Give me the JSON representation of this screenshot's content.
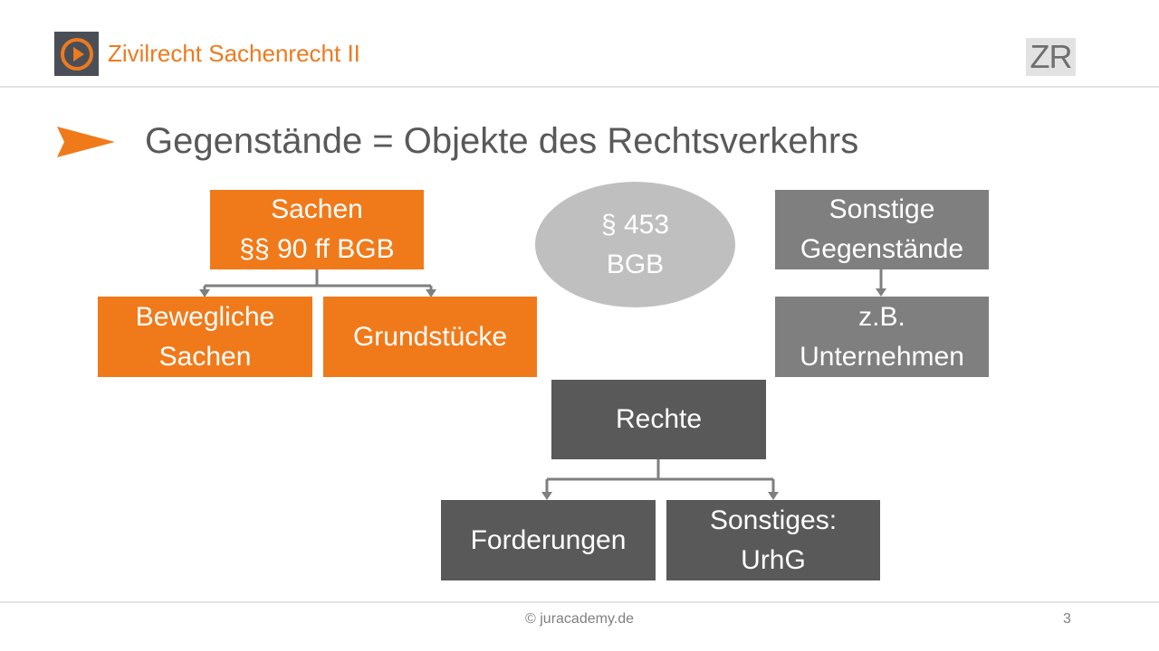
{
  "header": {
    "course_title": "Zivilrecht Sachenrecht II",
    "badge": "ZR",
    "logo_icon": "play-icon"
  },
  "slide": {
    "headline": "Gegenstände = Objekte des Rechtsverkehrs"
  },
  "diagram": {
    "sachen": "Sachen\n§§ 90 ff BGB",
    "bewegliche_sachen": "Bewegliche\nSachen",
    "grundstuecke": "Grundstücke",
    "paragraph_453": "§ 453\nBGB",
    "sonstige_gegenstaende": "Sonstige\nGegenstände",
    "unternehmen": "z.B.\nUnternehmen",
    "rechte": "Rechte",
    "forderungen": "Forderungen",
    "sonstiges_urhg": "Sonstiges:\nUrhG"
  },
  "footer": {
    "copyright": "© juracademy.de",
    "page_number": "3"
  },
  "colors": {
    "accent_orange": "#f07a1a",
    "title_orange": "#ee7a1e",
    "mid_gray": "#7f7f7f",
    "dark_gray": "#595959",
    "ellipse_gray": "#bfbfbf",
    "connector_gray": "#7f7f7f"
  }
}
